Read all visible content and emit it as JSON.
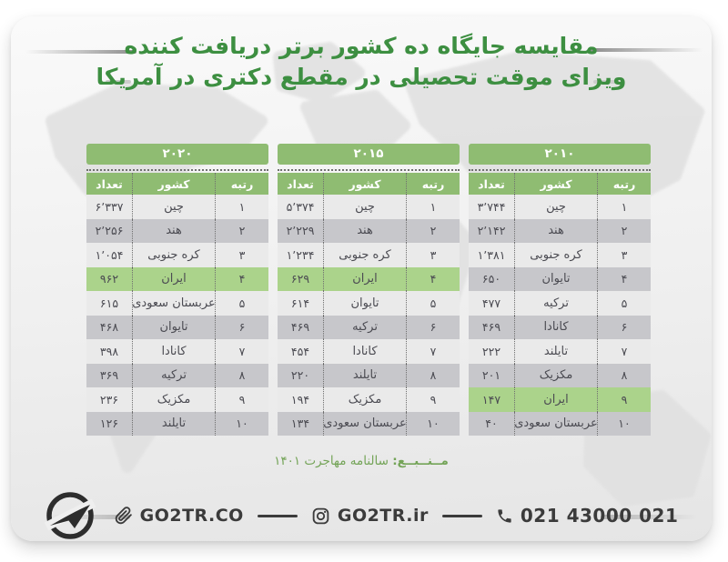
{
  "title": {
    "line1": "مقایسه جایگاه ده کشور برتر دریافت کننده",
    "line2": "ویزای موقت تحصیلی در مقطع دکتری در آمریکا"
  },
  "source": {
    "label": "مــنــبــع:",
    "text": "سالنامه مهاجرت ۱۴۰۱"
  },
  "footer": {
    "website": "GO2TR.CO",
    "instagram": "GO2TR.ir",
    "phone": "021 43000 021"
  },
  "colors": {
    "title_green": "#3d8f41",
    "header_green": "#8fbc72",
    "highlight_green": "#abd38b",
    "row_light": "#eaeaea",
    "row_dark": "#c7c7cb",
    "text_dark": "#4b4b52",
    "source_green": "#74a458",
    "footer_text": "#3b3b3b"
  },
  "chart_data": [
    {
      "type": "table",
      "year": 2020,
      "year_label": "۲۰۲۰",
      "headers": [
        "رتبه",
        "کشور",
        "تعداد"
      ],
      "rows": [
        {
          "rank": "۱",
          "country": "چین",
          "count": "۶٬۳۳۷",
          "value": 6337,
          "highlight": false
        },
        {
          "rank": "۲",
          "country": "هند",
          "count": "۲٬۲۵۶",
          "value": 2256,
          "highlight": false
        },
        {
          "rank": "۳",
          "country": "کره جنوبی",
          "count": "۱٬۰۵۴",
          "value": 1054,
          "highlight": false
        },
        {
          "rank": "۴",
          "country": "ایران",
          "count": "۹۶۲",
          "value": 962,
          "highlight": true
        },
        {
          "rank": "۵",
          "country": "عربستان سعودی",
          "count": "۶۱۵",
          "value": 615,
          "highlight": false
        },
        {
          "rank": "۶",
          "country": "تایوان",
          "count": "۴۶۸",
          "value": 468,
          "highlight": false
        },
        {
          "rank": "۷",
          "country": "کانادا",
          "count": "۳۹۸",
          "value": 398,
          "highlight": false
        },
        {
          "rank": "۸",
          "country": "ترکیه",
          "count": "۳۶۹",
          "value": 369,
          "highlight": false
        },
        {
          "rank": "۹",
          "country": "مکزیک",
          "count": "۲۳۶",
          "value": 236,
          "highlight": false
        },
        {
          "rank": "۱۰",
          "country": "تایلند",
          "count": "۱۲۶",
          "value": 126,
          "highlight": false
        }
      ]
    },
    {
      "type": "table",
      "year": 2015,
      "year_label": "۲۰۱۵",
      "headers": [
        "رتبه",
        "کشور",
        "تعداد"
      ],
      "rows": [
        {
          "rank": "۱",
          "country": "چین",
          "count": "۵٬۳۷۴",
          "value": 5374,
          "highlight": false
        },
        {
          "rank": "۲",
          "country": "هند",
          "count": "۲٬۲۲۹",
          "value": 2229,
          "highlight": false
        },
        {
          "rank": "۳",
          "country": "کره جنوبی",
          "count": "۱٬۲۳۴",
          "value": 1234,
          "highlight": false
        },
        {
          "rank": "۴",
          "country": "ایران",
          "count": "۶۲۹",
          "value": 629,
          "highlight": true
        },
        {
          "rank": "۵",
          "country": "تایوان",
          "count": "۶۱۴",
          "value": 614,
          "highlight": false
        },
        {
          "rank": "۶",
          "country": "ترکیه",
          "count": "۴۶۹",
          "value": 469,
          "highlight": false
        },
        {
          "rank": "۷",
          "country": "کانادا",
          "count": "۴۵۴",
          "value": 454,
          "highlight": false
        },
        {
          "rank": "۸",
          "country": "تایلند",
          "count": "۲۲۰",
          "value": 220,
          "highlight": false
        },
        {
          "rank": "۹",
          "country": "مکزیک",
          "count": "۱۹۴",
          "value": 194,
          "highlight": false
        },
        {
          "rank": "۱۰",
          "country": "عربستان سعودی",
          "count": "۱۳۴",
          "value": 134,
          "highlight": false
        }
      ]
    },
    {
      "type": "table",
      "year": 2010,
      "year_label": "۲۰۱۰",
      "headers": [
        "رتبه",
        "کشور",
        "تعداد"
      ],
      "rows": [
        {
          "rank": "۱",
          "country": "چین",
          "count": "۳٬۷۴۴",
          "value": 3744,
          "highlight": false
        },
        {
          "rank": "۲",
          "country": "هند",
          "count": "۲٬۱۴۲",
          "value": 2142,
          "highlight": false
        },
        {
          "rank": "۳",
          "country": "کره جنوبی",
          "count": "۱٬۳۸۱",
          "value": 1381,
          "highlight": false
        },
        {
          "rank": "۴",
          "country": "تایوان",
          "count": "۶۵۰",
          "value": 650,
          "highlight": false
        },
        {
          "rank": "۵",
          "country": "ترکیه",
          "count": "۴۷۷",
          "value": 477,
          "highlight": false
        },
        {
          "rank": "۶",
          "country": "کانادا",
          "count": "۴۶۹",
          "value": 469,
          "highlight": false
        },
        {
          "rank": "۷",
          "country": "تایلند",
          "count": "۲۲۲",
          "value": 222,
          "highlight": false
        },
        {
          "rank": "۸",
          "country": "مکزیک",
          "count": "۲۰۱",
          "value": 201,
          "highlight": false
        },
        {
          "rank": "۹",
          "country": "ایران",
          "count": "۱۴۷",
          "value": 147,
          "highlight": true
        },
        {
          "rank": "۱۰",
          "country": "عربستان سعودی",
          "count": "۴۰",
          "value": 40,
          "highlight": false
        }
      ]
    }
  ]
}
